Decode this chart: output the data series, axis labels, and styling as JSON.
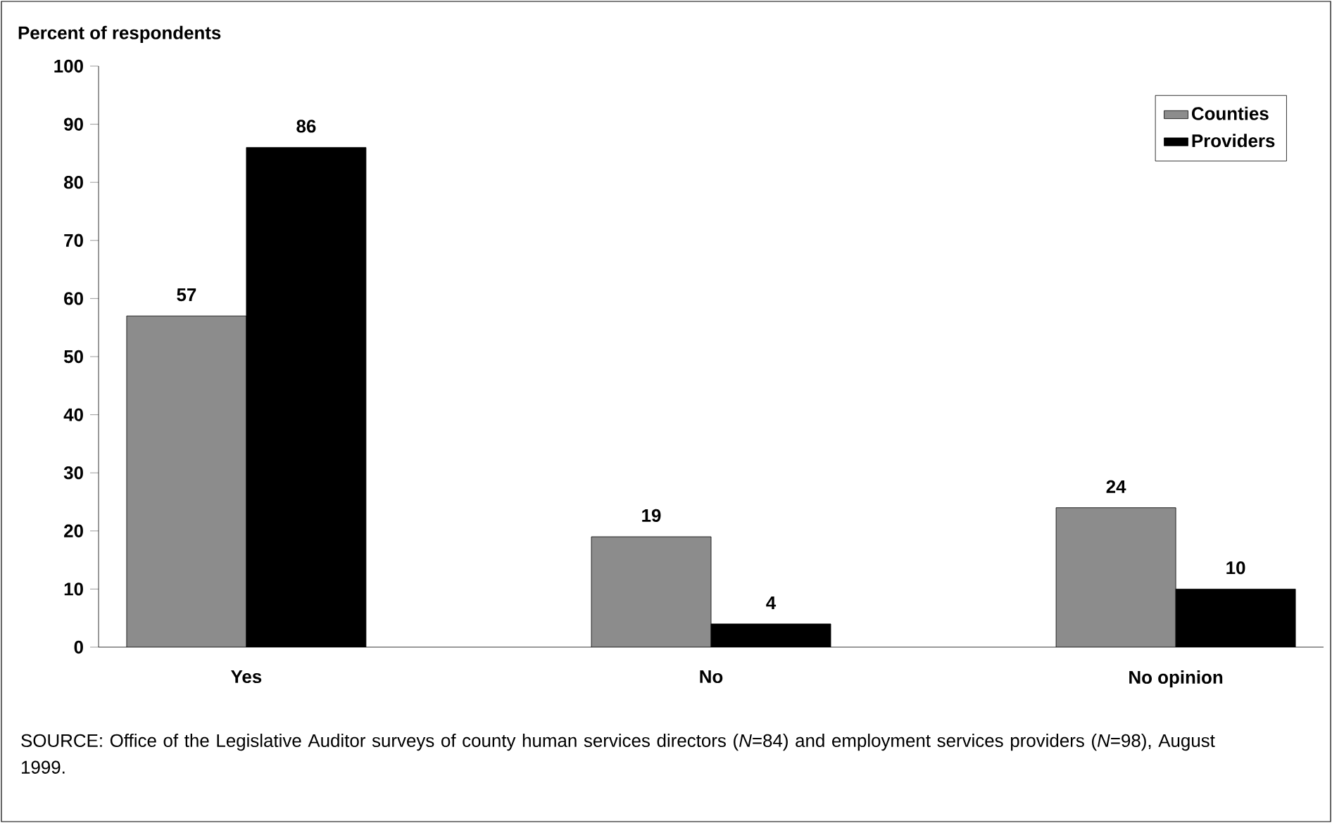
{
  "chart_data": {
    "type": "bar",
    "ylabel": "Percent of respondents",
    "categories": [
      "Yes",
      "No",
      "No opinion"
    ],
    "series": [
      {
        "name": "Counties",
        "color": "#8c8c8c",
        "values": [
          57,
          19,
          24
        ]
      },
      {
        "name": "Providers",
        "color": "#000000",
        "values": [
          86,
          4,
          10
        ]
      }
    ],
    "ylim": [
      0,
      100
    ],
    "yticks": [
      0,
      10,
      20,
      30,
      40,
      50,
      60,
      70,
      80,
      90,
      100
    ],
    "data_labels": true,
    "legend": "top right",
    "annotations": [
      "SOURCE:  Office of the Legislative Auditor surveys of county human services directors (*N*=84) and employment services providers (*N*=98), August 1999."
    ]
  }
}
